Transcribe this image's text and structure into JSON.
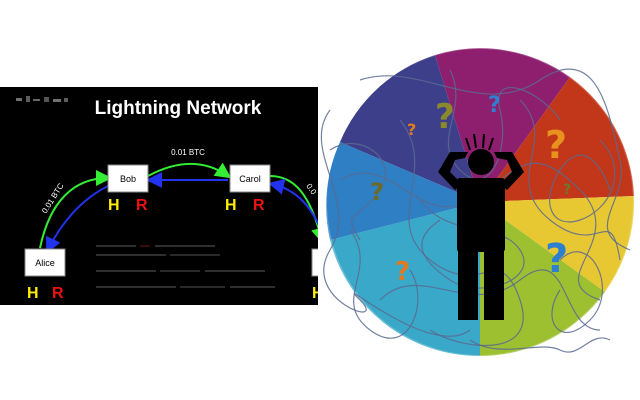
{
  "slide": {
    "title": "Lightning Network",
    "nodes": [
      {
        "name": "Alice",
        "h": "H",
        "r": "R"
      },
      {
        "name": "Bob",
        "h": "H",
        "r": "R"
      },
      {
        "name": "Carol",
        "h": "H",
        "r": "R"
      },
      {
        "name": "",
        "h": "H",
        "r": ""
      }
    ],
    "edges": [
      {
        "from": "Alice",
        "to": "Bob",
        "label": "0.01 BTC"
      },
      {
        "from": "Bob",
        "to": "Carol",
        "label": "0.01 BTC"
      },
      {
        "from": "Carol",
        "to": "",
        "label": "0.0"
      }
    ],
    "colors": {
      "background": "#000000",
      "forward_arrow": "#33ee33",
      "return_arrow": "#2233ee",
      "h_letter": "#ffee00",
      "r_letter": "#ee1111"
    }
  },
  "illustration": {
    "description_icon": "confused-person-icon",
    "wheel_colors": [
      "#8e1f6e",
      "#c2361a",
      "#e8c832",
      "#9cc030",
      "#3aa8c8",
      "#2e7fc4",
      "#3e3f8a"
    ],
    "question_marks": [
      {
        "char": "?",
        "color": "#8a8a2a"
      },
      {
        "char": "?",
        "color": "#2e7fd0"
      },
      {
        "char": "?",
        "color": "#e07a20"
      },
      {
        "char": "?",
        "color": "#e8921e"
      },
      {
        "char": "?",
        "color": "#6a7a2a"
      },
      {
        "char": "?",
        "color": "#6a6a2a"
      },
      {
        "char": "?",
        "color": "#e07a20"
      },
      {
        "char": "?",
        "color": "#2e7fd0"
      }
    ]
  }
}
